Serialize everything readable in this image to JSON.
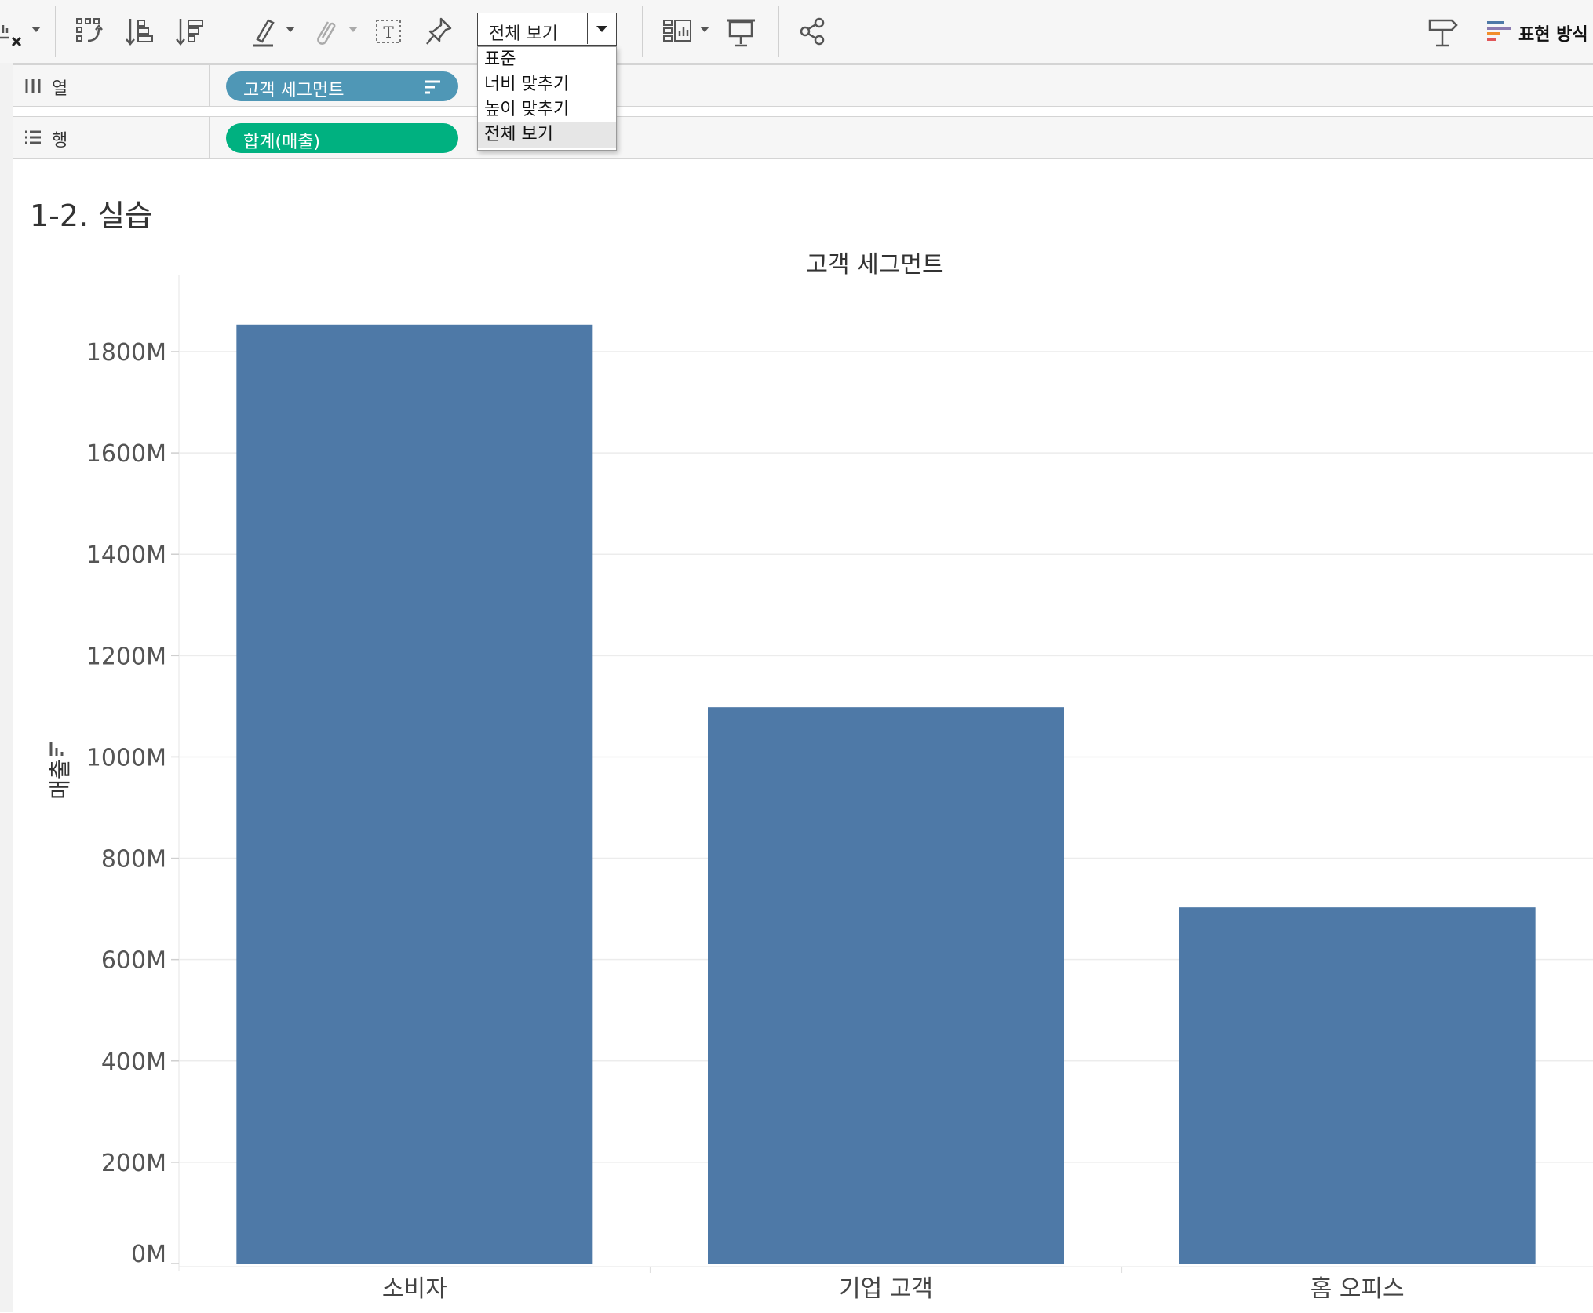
{
  "toolbar": {
    "fit": {
      "selected": "전체 보기",
      "options": [
        "표준",
        "너비 맞추기",
        "높이 맞추기",
        "전체 보기"
      ]
    },
    "show_me_label": "표현 방식"
  },
  "shelves": {
    "columns": {
      "label": "열",
      "pill": "고객 세그먼트"
    },
    "rows": {
      "label": "행",
      "pill": "합계(매출)"
    }
  },
  "sheet": {
    "title": "1-2. 실습",
    "column_header": "고객 세그먼트"
  },
  "colors": {
    "bar": "#4e79a7",
    "pill_dimension": "#4f97b6",
    "pill_measure": "#00b180"
  },
  "chart_data": {
    "type": "bar",
    "xlabel": "고객 세그먼트",
    "ylabel": "매출",
    "categories": [
      "소비자",
      "기업 고객",
      "홈 오피스"
    ],
    "values": [
      1853,
      1098,
      703
    ],
    "value_unit": "M",
    "ylim": [
      0,
      1960
    ],
    "yticks": [
      0,
      200,
      400,
      600,
      800,
      1000,
      1200,
      1400,
      1600,
      1800
    ],
    "ytick_labels": [
      "0M",
      "200M",
      "400M",
      "600M",
      "800M",
      "1000M",
      "1200M",
      "1400M",
      "1600M",
      "1800M"
    ],
    "grid": true,
    "legend": "none"
  }
}
